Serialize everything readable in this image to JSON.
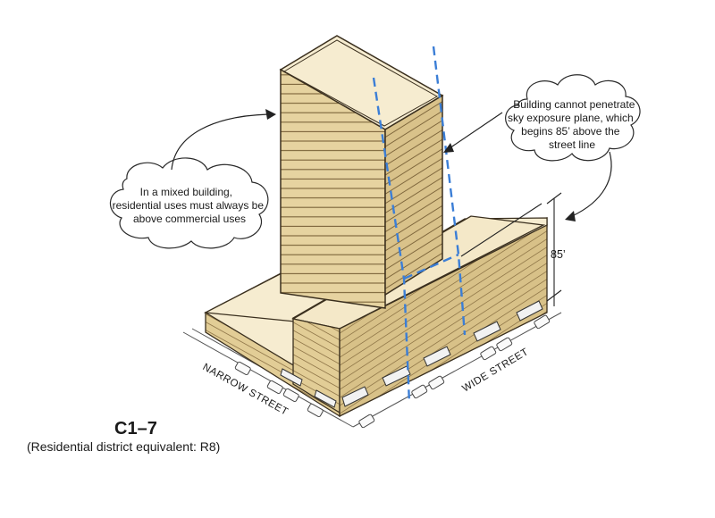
{
  "callouts": {
    "sky_plane": [
      "Building cannot penetrate",
      "sky exposure plane, which",
      "begins 85’ above the",
      "street line"
    ],
    "mixed_use": [
      "In a mixed building,",
      "residential uses must always be",
      "above commercial uses"
    ]
  },
  "dimension": {
    "height_label": "85’"
  },
  "streets": {
    "narrow": "NARROW STREET",
    "wide": "WIDE STREET"
  },
  "zone": {
    "title": "C1–7",
    "subtitle": "(Residential district equivalent: R8)"
  },
  "colors": {
    "facade": "#e6d3a0",
    "facade_side": "#d9c28a",
    "roof": "#f6ecd0",
    "stripe": "#7a6238",
    "outline": "#3a2f1e",
    "sky_plane": "#3b7ed6"
  }
}
